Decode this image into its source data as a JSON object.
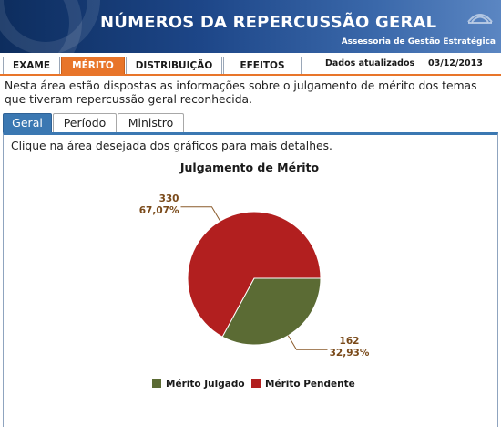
{
  "header": {
    "title": "NÚMEROS DA REPERCUSSÃO GERAL",
    "subtitle": "Assessoria de Gestão Estratégica"
  },
  "top_tabs": [
    {
      "label": "EXAME",
      "active": false
    },
    {
      "label": "MÉRITO",
      "active": true
    },
    {
      "label": "DISTRIBUIÇÃO",
      "active": false
    },
    {
      "label": "EFEITOS",
      "active": false
    }
  ],
  "updated": {
    "label": "Dados atualizados",
    "date": "03/12/2013"
  },
  "intro_text": "Nesta área estão dispostas as informações sobre o julgamento de mérito dos temas que tiveram repercussão geral reconhecida.",
  "sub_tabs": [
    {
      "label": "Geral",
      "active": true
    },
    {
      "label": "Período",
      "active": false
    },
    {
      "label": "Ministro",
      "active": false
    }
  ],
  "hint_text": "Clique na área desejada dos gráficos para mais detalhes.",
  "colors": {
    "header_dark": "#0d2d5e",
    "active_tab": "#e8752a",
    "active_subtab": "#3b78b2",
    "julgado": "#5b6b34",
    "pendente": "#b21f1f",
    "label_text": "#7a4a1a"
  },
  "chart_data": {
    "type": "pie",
    "title": "Julgamento de Mérito",
    "legend_position": "bottom",
    "series": [
      {
        "name": "Mérito Julgado",
        "value": 162,
        "percent_label": "32,93%",
        "color": "#5b6b34"
      },
      {
        "name": "Mérito Pendente",
        "value": 330,
        "percent_label": "67,07%",
        "color": "#b21f1f"
      }
    ]
  }
}
